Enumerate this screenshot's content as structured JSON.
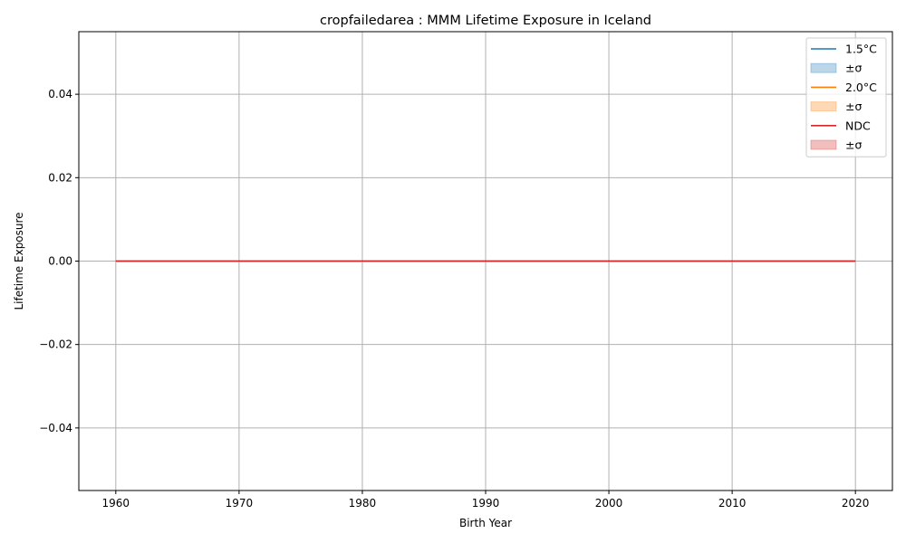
{
  "chart_data": {
    "type": "line",
    "title": "cropfailedarea : MMM Lifetime Exposure in Iceland",
    "xlabel": "Birth Year",
    "ylabel": "Lifetime Exposure",
    "xlim": [
      1957,
      2023
    ],
    "ylim": [
      -0.055,
      0.055
    ],
    "x_ticks": [
      1960,
      1970,
      1980,
      1990,
      2000,
      2010,
      2020
    ],
    "x_tick_labels": [
      "1960",
      "1970",
      "1980",
      "1990",
      "2000",
      "2010",
      "2020"
    ],
    "y_ticks": [
      -0.04,
      -0.02,
      0.0,
      0.02,
      0.04
    ],
    "y_tick_labels": [
      "−0.04",
      "−0.02",
      "0.00",
      "0.02",
      "0.04"
    ],
    "grid": true,
    "legend_position": "top-right",
    "x": [
      1960,
      2020
    ],
    "series": [
      {
        "name": "1.5°C",
        "color": "#1f77b4",
        "values": [
          0,
          0
        ],
        "band_label": "±σ",
        "band_lower": [
          0,
          0
        ],
        "band_upper": [
          0,
          0
        ]
      },
      {
        "name": "2.0°C",
        "color": "#ff7f0e",
        "values": [
          0,
          0
        ],
        "band_label": "±σ",
        "band_lower": [
          0,
          0
        ],
        "band_upper": [
          0,
          0
        ]
      },
      {
        "name": "NDC",
        "color": "#d62728",
        "values": [
          0,
          0
        ],
        "band_label": "±σ",
        "band_lower": [
          0,
          0
        ],
        "band_upper": [
          0,
          0
        ]
      }
    ]
  }
}
